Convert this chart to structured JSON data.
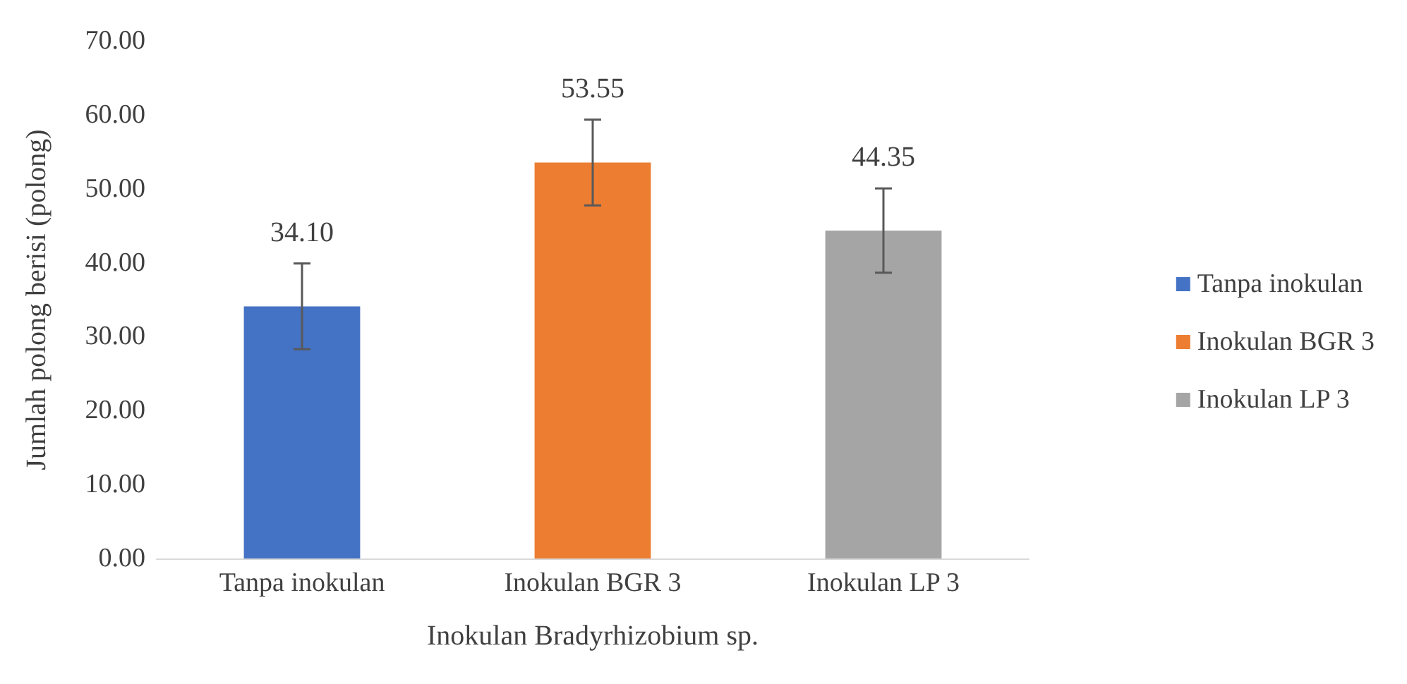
{
  "chart_data": {
    "type": "bar",
    "xlabel": "Inokulan Bradyrhizobium sp.",
    "ylabel": "Jumlah polong berisi (polong)",
    "categories": [
      "Tanpa inokulan",
      "Inokulan BGR 3",
      "Inokulan LP 3"
    ],
    "series": [
      {
        "name": "Tanpa inokulan",
        "color": "#4472c4",
        "values": [
          34.1,
          null,
          null
        ],
        "errors": [
          5.8,
          null,
          null
        ],
        "value_labels": [
          "34.10",
          null,
          null
        ]
      },
      {
        "name": "Inokulan BGR 3",
        "color": "#ed7d31",
        "values": [
          null,
          53.55,
          null
        ],
        "errors": [
          null,
          5.8,
          null
        ],
        "value_labels": [
          null,
          "53.55",
          null
        ]
      },
      {
        "name": "Inokulan LP 3",
        "color": "#a5a5a5",
        "values": [
          null,
          null,
          44.35
        ],
        "errors": [
          null,
          null,
          5.7
        ],
        "value_labels": [
          null,
          null,
          "44.35"
        ]
      }
    ],
    "ylim": [
      0,
      70
    ],
    "yticks": [
      {
        "value": 0,
        "label": "0.00"
      },
      {
        "value": 10,
        "label": "10.00"
      },
      {
        "value": 20,
        "label": "20.00"
      },
      {
        "value": 30,
        "label": "30.00"
      },
      {
        "value": 40,
        "label": "40.00"
      },
      {
        "value": 50,
        "label": "50.00"
      },
      {
        "value": 60,
        "label": "60.00"
      },
      {
        "value": 70,
        "label": "70.00"
      }
    ],
    "grid": false,
    "legend": "right"
  }
}
